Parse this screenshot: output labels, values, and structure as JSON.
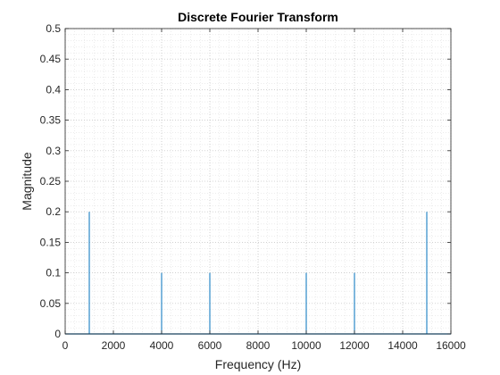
{
  "chart_data": {
    "type": "line",
    "title": "Discrete Fourier Transform",
    "xlabel": "Frequency (Hz)",
    "ylabel": "Magnitude",
    "xlim": [
      0,
      16000
    ],
    "ylim": [
      0,
      0.5
    ],
    "xticks": [
      0,
      2000,
      4000,
      6000,
      8000,
      10000,
      12000,
      14000,
      16000
    ],
    "xtick_labels": [
      "0",
      "2000",
      "4000",
      "6000",
      "8000",
      "10000",
      "12000",
      "14000",
      "16000"
    ],
    "yticks": [
      0,
      0.05,
      0.1,
      0.15,
      0.2,
      0.25,
      0.3,
      0.35,
      0.4,
      0.45,
      0.5
    ],
    "ytick_labels": [
      "0",
      "0.05",
      "0.1",
      "0.15",
      "0.2",
      "0.25",
      "0.3",
      "0.35",
      "0.4",
      "0.45",
      "0.5"
    ],
    "grid": "major and minor (dotted)",
    "line_color": "#0072BD",
    "series": [
      {
        "peaks": [
          {
            "x": 1000,
            "y": 0.2
          },
          {
            "x": 4000,
            "y": 0.1
          },
          {
            "x": 6000,
            "y": 0.1
          },
          {
            "x": 10000,
            "y": 0.1
          },
          {
            "x": 12000,
            "y": 0.1
          },
          {
            "x": 15000,
            "y": 0.2
          }
        ],
        "baseline": 0
      }
    ]
  }
}
